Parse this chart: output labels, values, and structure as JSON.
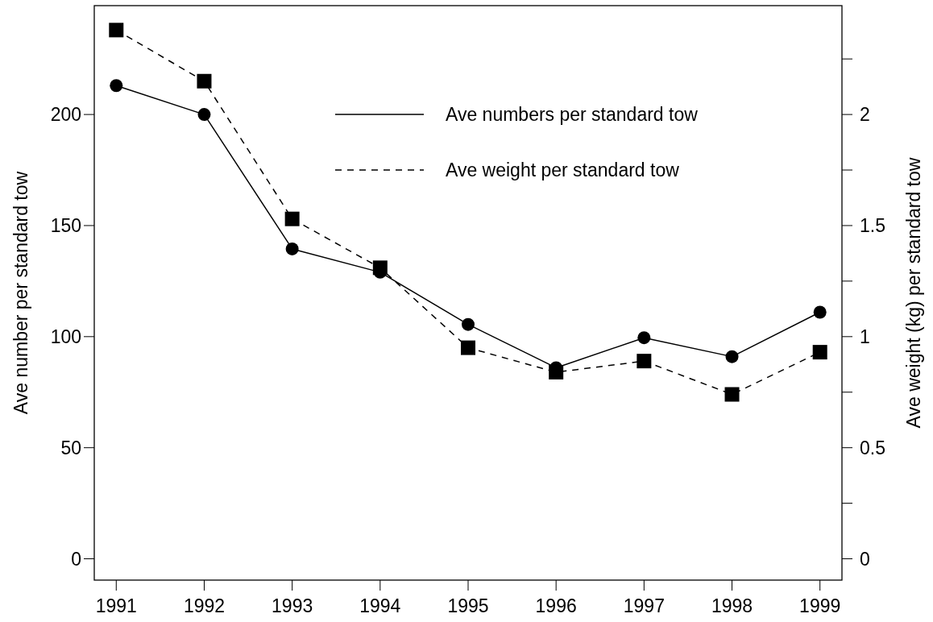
{
  "chart_data": {
    "type": "line",
    "x": [
      1991,
      1992,
      1993,
      1994,
      1995,
      1996,
      1997,
      1998,
      1999
    ],
    "xlim": [
      1990.75,
      1999.25
    ],
    "xticks": [
      1991,
      1992,
      1993,
      1994,
      1995,
      1996,
      1997,
      1998,
      1999
    ],
    "ylim": [
      -9.6,
      249
    ],
    "yticks": [
      0,
      50,
      100,
      150,
      200
    ],
    "y2lim": [
      -0.096,
      2.49
    ],
    "y2ticks": [
      0,
      {
        "value": 0.25,
        "label": null
      },
      0.5,
      {
        "value": 0.75,
        "label": null
      },
      1,
      {
        "value": 1.25,
        "label": null
      },
      1.5,
      {
        "value": 1.75,
        "label": null
      },
      2,
      {
        "value": 2.25,
        "label": null
      }
    ],
    "ylabel": "Ave number per standard tow",
    "y2label": "Ave weight (kg) per standard tow",
    "legend": "top right",
    "grid": false,
    "series": [
      {
        "name": "Ave numbers per standard tow",
        "color": "#000000",
        "marker": "circle",
        "line_style": "solid",
        "values": [
          213,
          200,
          139.5,
          129,
          105.5,
          86,
          99.5,
          91,
          111
        ]
      },
      {
        "name": "Ave weight per standard tow",
        "color": "#000000",
        "marker": "square",
        "line_style": "dashed",
        "axis": "y2",
        "values": [
          2.38,
          2.15,
          1.53,
          1.31,
          0.95,
          0.84,
          0.89,
          0.74,
          0.93
        ]
      }
    ]
  }
}
